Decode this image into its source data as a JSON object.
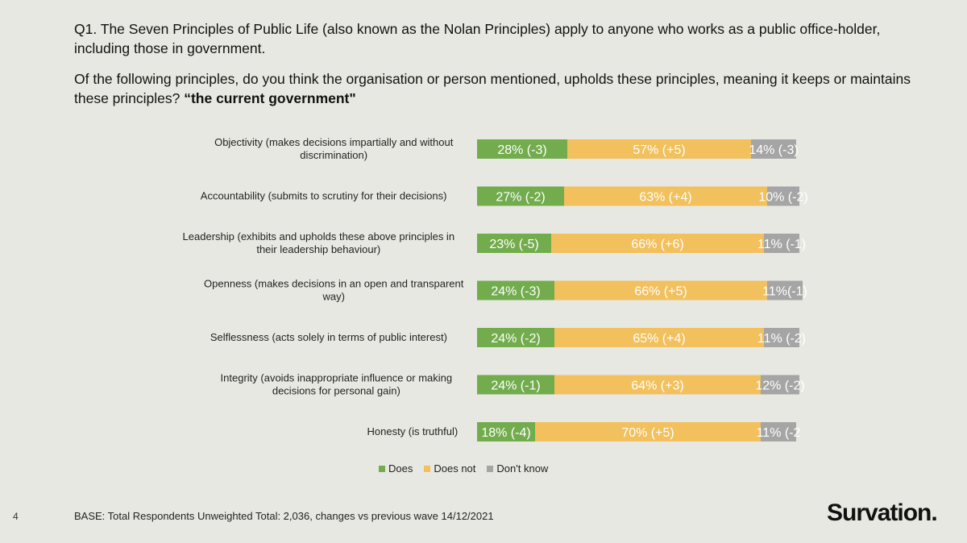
{
  "question": {
    "line1": "Q1. The Seven Principles of Public Life (also known as the Nolan Principles) apply to anyone who works as a public office-holder, including those in government.",
    "line2_prefix": "Of the following principles, do you think the organisation or person mentioned, upholds these principles, meaning it keeps or maintains these principles? ",
    "line2_bold": "“the current government\""
  },
  "colors": {
    "does": "#72ac4d",
    "does_not": "#f2c05c",
    "dont_know": "#a5a5a5"
  },
  "chart_data": {
    "type": "bar",
    "orientation": "horizontal",
    "stacked": true,
    "categories": [
      [
        "Objectivity (makes decisions impartially and without",
        "discrimination)"
      ],
      [
        "Accountability (submits to scrutiny for their decisions)"
      ],
      [
        "Leadership (exhibits and upholds these above principles in",
        "their leadership behaviour)"
      ],
      [
        "Openness (makes decisions in an open and transparent",
        "way)"
      ],
      [
        "Selflessness (acts solely in terms of public interest)"
      ],
      [
        "Integrity (avoids inappropriate influence or making",
        "decisions for personal gain)"
      ],
      [
        "Honesty (is truthful)"
      ]
    ],
    "series": [
      {
        "name": "Does",
        "values": [
          28,
          27,
          23,
          24,
          24,
          24,
          18
        ],
        "labels": [
          "28% (-3)",
          "27% (-2)",
          "23% (-5)",
          "24% (-3)",
          "24% (-2)",
          "24% (-1)",
          "18% (-4)"
        ]
      },
      {
        "name": "Does not",
        "values": [
          57,
          63,
          66,
          66,
          65,
          64,
          70
        ],
        "labels": [
          "57% (+5)",
          "63% (+4)",
          "66% (+6)",
          "66% (+5)",
          "65% (+4)",
          "64% (+3)",
          "70% (+5)"
        ]
      },
      {
        "name": "Don't know",
        "values": [
          14,
          10,
          11,
          11,
          11,
          12,
          11
        ],
        "labels": [
          "14% (-3)",
          "10% (-2)",
          "11% (-1)",
          "11%(-1)",
          "11% (-2)",
          "12% (-2)",
          "11% (-2"
        ]
      }
    ],
    "xlim": [
      0,
      100
    ],
    "legend_position": "bottom"
  },
  "footer": {
    "page_number": "4",
    "base_note": "BASE: Total Respondents Unweighted Total: 2,036, changes vs previous wave 14/12/2021",
    "logo_text": "Survation."
  }
}
